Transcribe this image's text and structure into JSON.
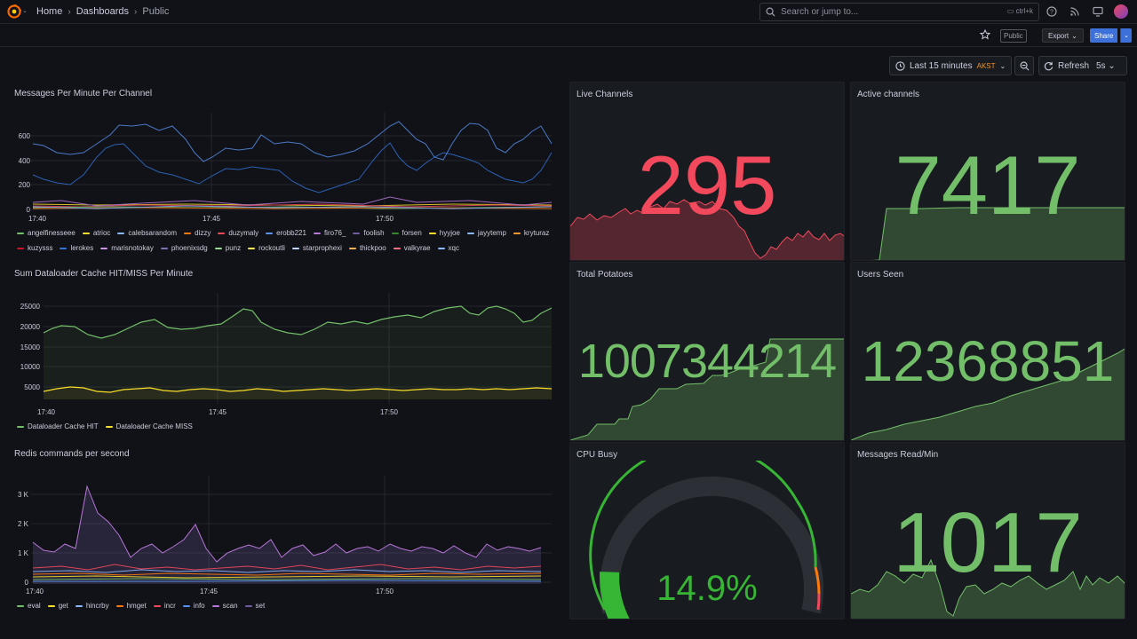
{
  "nav": {
    "home": "Home",
    "dashboards": "Dashboards",
    "current": "Public",
    "search_placeholder": "Search or jump to...",
    "search_shortcut": "ctrl+k"
  },
  "toolbar": {
    "public_badge": "Public",
    "export_label": "Export",
    "share_label": "Share",
    "time_range": "Last 15 minutes",
    "timezone": "AKST",
    "refresh_label": "Refresh",
    "refresh_interval": "5s"
  },
  "colors": {
    "green": "#73bf69",
    "red": "#f2495c",
    "yellow": "#fade2a",
    "blue": "#5794f2",
    "purple": "#b877d9"
  },
  "panels": {
    "messages": {
      "title": "Messages Per Minute Per Channel",
      "yticks": [
        "600",
        "400",
        "200",
        "0"
      ],
      "xticks": [
        "17:40",
        "17:45",
        "17:50"
      ],
      "legend": [
        {
          "name": "angelfinesseee",
          "color": "#73bf69"
        },
        {
          "name": "atrioc",
          "color": "#fade2a"
        },
        {
          "name": "calebsarandom",
          "color": "#8ab8ff"
        },
        {
          "name": "dizzy",
          "color": "#ff780a"
        },
        {
          "name": "duzymaly",
          "color": "#f2495c"
        },
        {
          "name": "erobb221",
          "color": "#5794f2"
        },
        {
          "name": "firo76_",
          "color": "#b877d9"
        },
        {
          "name": "foolish",
          "color": "#705da0"
        },
        {
          "name": "forsen",
          "color": "#37872d"
        },
        {
          "name": "hyyjoe",
          "color": "#fade2a"
        },
        {
          "name": "jayytemp",
          "color": "#8ab8ff"
        },
        {
          "name": "kryturaz",
          "color": "#ff9830"
        },
        {
          "name": "kuzysss",
          "color": "#c4162a"
        },
        {
          "name": "lerokes",
          "color": "#3274d9"
        },
        {
          "name": "marisnotokay",
          "color": "#ca95e5"
        },
        {
          "name": "phoenixsdg",
          "color": "#806eb7"
        },
        {
          "name": "punz",
          "color": "#96d98d"
        },
        {
          "name": "rockoutli",
          "color": "#ffee52"
        },
        {
          "name": "starprophexi",
          "color": "#c0d8ff"
        },
        {
          "name": "thickpoo",
          "color": "#ffb357"
        },
        {
          "name": "valkyrae",
          "color": "#ff7383"
        },
        {
          "name": "xqc",
          "color": "#8ab8ff"
        }
      ]
    },
    "dataloader": {
      "title": "Sum Dataloader Cache HIT/MISS Per Minute",
      "yticks": [
        "25000",
        "20000",
        "15000",
        "10000",
        "5000"
      ],
      "xticks": [
        "17:40",
        "17:45",
        "17:50"
      ],
      "legend": [
        {
          "name": "Dataloader Cache HIT",
          "color": "#73bf69"
        },
        {
          "name": "Dataloader Cache MISS",
          "color": "#fade2a"
        }
      ]
    },
    "redis": {
      "title": "Redis commands per second",
      "yticks": [
        "3 K",
        "2 K",
        "1 K",
        "0"
      ],
      "xticks": [
        "17:40",
        "17:45",
        "17:50"
      ],
      "legend": [
        {
          "name": "eval",
          "color": "#73bf69"
        },
        {
          "name": "get",
          "color": "#fade2a"
        },
        {
          "name": "hincrby",
          "color": "#8ab8ff"
        },
        {
          "name": "hmget",
          "color": "#ff780a"
        },
        {
          "name": "incr",
          "color": "#f2495c"
        },
        {
          "name": "info",
          "color": "#5794f2"
        },
        {
          "name": "scan",
          "color": "#b877d9"
        },
        {
          "name": "set",
          "color": "#705da0"
        }
      ]
    },
    "live_channels": {
      "title": "Live Channels",
      "value": "295",
      "color": "#f2495c"
    },
    "active_channels": {
      "title": "Active channels",
      "value": "7417",
      "color": "#73bf69"
    },
    "total_potatoes": {
      "title": "Total Potatoes",
      "value": "1007344214",
      "color": "#73bf69"
    },
    "users_seen": {
      "title": "Users Seen",
      "value": "12368851",
      "color": "#73bf69"
    },
    "cpu_busy": {
      "title": "CPU Busy",
      "value": "14.9%",
      "percent": 14.9,
      "color": "#37b534"
    },
    "messages_read": {
      "title": "Messages Read/Min",
      "value": "1017",
      "color": "#73bf69"
    }
  }
}
